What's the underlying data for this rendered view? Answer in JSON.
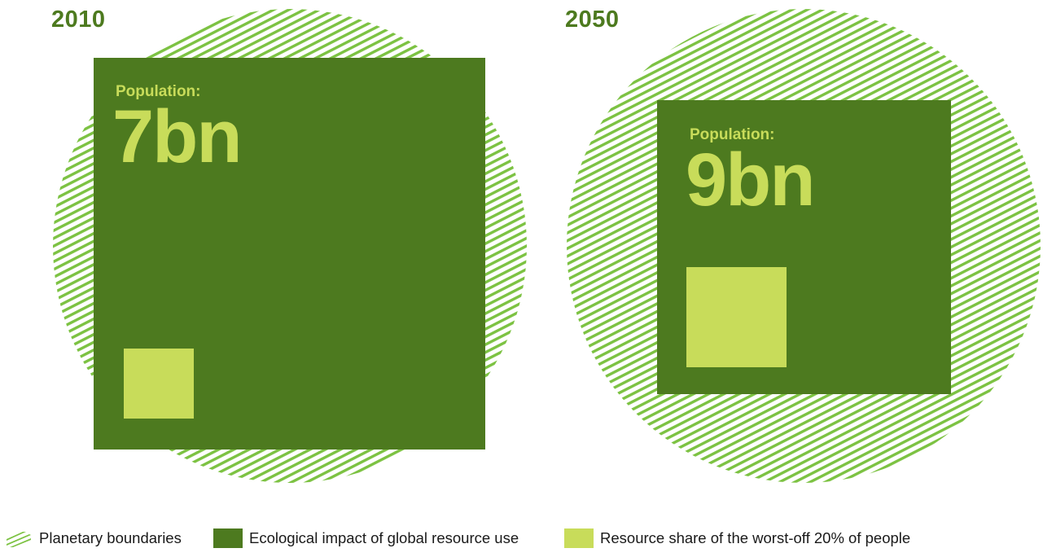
{
  "colors": {
    "dark_green": "#4d7a1f",
    "light_green": "#c8dc5a",
    "hatch_green": "#7cc242"
  },
  "panels": [
    {
      "year": "2010",
      "population_label": "Population:",
      "population_value": "7bn"
    },
    {
      "year": "2050",
      "population_label": "Population:",
      "population_value": "9bn"
    }
  ],
  "legend": [
    {
      "label": "Planetary boundaries",
      "icon": "hatched-circle-icon"
    },
    {
      "label": "Ecological impact of global resource use",
      "icon": "dark-green-square-icon"
    },
    {
      "label": "Resource share of the worst-off 20% of people",
      "icon": "light-green-square-icon"
    }
  ]
}
